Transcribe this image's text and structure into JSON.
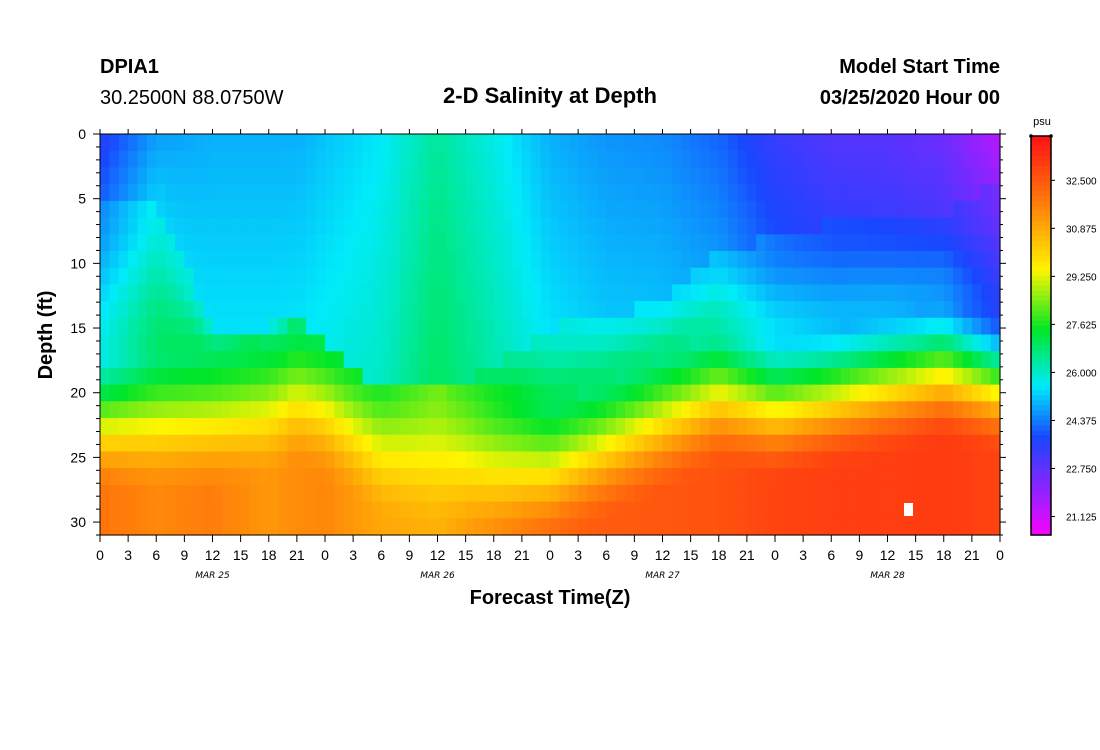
{
  "header": {
    "station_name": "DPIA1",
    "station_coords": "30.2500N 88.0750W",
    "title": "2-D Salinity at Depth",
    "model_label": "Model Start Time",
    "model_time": "03/25/2020 Hour 00"
  },
  "chart_data": {
    "type": "heatmap",
    "title": "2-D Salinity at Depth",
    "xlabel": "Forecast Time(Z)",
    "ylabel": "Depth (ft)",
    "x_range_hours": [
      0,
      96
    ],
    "y_range_ft": [
      0,
      31
    ],
    "y_inverted": true,
    "x_ticks": [
      "0",
      "3",
      "6",
      "9",
      "12",
      "15",
      "18",
      "21",
      "0",
      "3",
      "6",
      "9",
      "12",
      "15",
      "18",
      "21",
      "0",
      "3",
      "6",
      "9",
      "12",
      "15",
      "18",
      "21",
      "0",
      "3",
      "6",
      "9",
      "12",
      "15",
      "18",
      "21",
      "0"
    ],
    "y_ticks": [
      0,
      5,
      10,
      15,
      20,
      25,
      30
    ],
    "day_labels": [
      {
        "label": "MAR 25",
        "hour": 12
      },
      {
        "label": "MAR 26",
        "hour": 36
      },
      {
        "label": "MAR 27",
        "hour": 60
      },
      {
        "label": "MAR 28",
        "hour": 84
      }
    ],
    "colorbar": {
      "unit": "psu",
      "min": 20.5,
      "max": 34.0,
      "tick_values": [
        32.5,
        30.875,
        29.25,
        27.625,
        26.0,
        24.375,
        22.75,
        21.125
      ],
      "tick_labels": [
        "32.500",
        "30.875",
        "29.250",
        "27.625",
        "26.000",
        "24.375",
        "22.750",
        "21.125"
      ]
    },
    "profile_times_hours": [
      0,
      6,
      12,
      18,
      21,
      24,
      30,
      36,
      42,
      48,
      54,
      60,
      66,
      72,
      78,
      84,
      90,
      96
    ],
    "top_layer_depth_ft": [
      5,
      5,
      15,
      15,
      14,
      16,
      20,
      20,
      18,
      15,
      14,
      13,
      9,
      8,
      7,
      7,
      6,
      4
    ],
    "thermocline_depth_ft": [
      17,
      17,
      17,
      16,
      15,
      16,
      19,
      20,
      21,
      21,
      19,
      17,
      15,
      16,
      15,
      14,
      13,
      14
    ],
    "surface_salinity_psu": [
      23.6,
      24.8,
      25.0,
      25.0,
      25.0,
      25.2,
      25.6,
      26.5,
      25.8,
      25.0,
      24.7,
      24.6,
      24.2,
      23.4,
      23.0,
      22.9,
      22.6,
      21.5
    ],
    "bottom_salinity_psu": [
      32.0,
      31.6,
      31.8,
      31.3,
      31.5,
      31.6,
      31.0,
      30.8,
      31.6,
      32.3,
      32.5,
      32.6,
      32.7,
      33.0,
      33.1,
      33.1,
      33.2,
      33.0
    ]
  }
}
